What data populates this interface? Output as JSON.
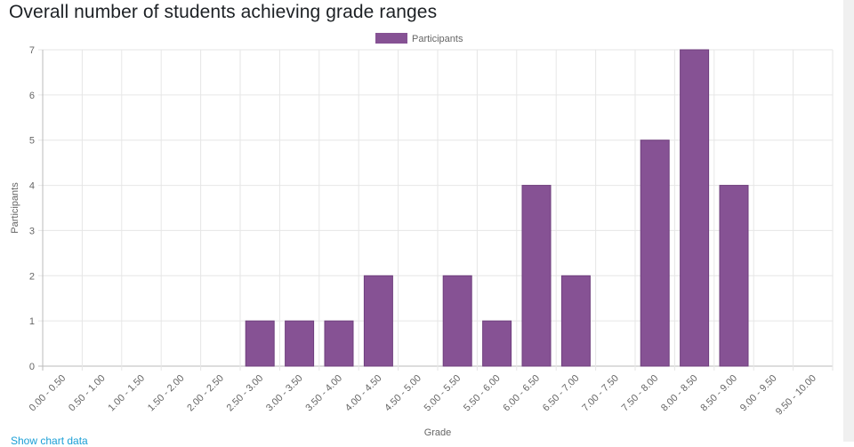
{
  "title": "Overall number of students achieving grade ranges",
  "show_data_link": "Show chart data",
  "chart_data": {
    "type": "bar",
    "title": "Overall number of students achieving grade ranges",
    "xlabel": "Grade",
    "ylabel": "Participants",
    "legend": {
      "entries": [
        "Participants"
      ],
      "placement": "top-center"
    },
    "categories": [
      "0.00 - 0.50",
      "0.50 - 1.00",
      "1.00 - 1.50",
      "1.50 - 2.00",
      "2.00 - 2.50",
      "2.50 - 3.00",
      "3.00 - 3.50",
      "3.50 - 4.00",
      "4.00 - 4.50",
      "4.50 - 5.00",
      "5.00 - 5.50",
      "5.50 - 6.00",
      "6.00 - 6.50",
      "6.50 - 7.00",
      "7.00 - 7.50",
      "7.50 - 8.00",
      "8.00 - 8.50",
      "8.50 - 9.00",
      "9.00 - 9.50",
      "9.50 - 10.00"
    ],
    "series": [
      {
        "name": "Participants",
        "values": [
          0,
          0,
          0,
          0,
          0,
          1,
          1,
          1,
          2,
          0,
          2,
          1,
          4,
          2,
          0,
          5,
          7,
          4,
          0,
          0
        ],
        "color": "#865294"
      }
    ],
    "ylim": [
      0,
      7
    ],
    "yticks": [
      0,
      1,
      2,
      3,
      4,
      5,
      6,
      7
    ],
    "grid": true
  }
}
